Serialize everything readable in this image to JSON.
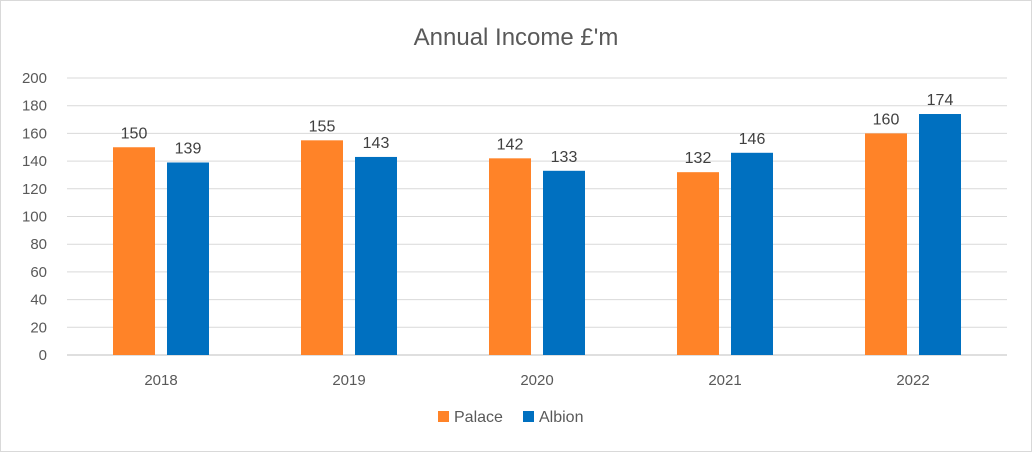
{
  "chart_data": {
    "type": "bar",
    "title": "Annual Income £'m",
    "xlabel": "",
    "ylabel": "",
    "categories": [
      "2018",
      "2019",
      "2020",
      "2021",
      "2022"
    ],
    "series": [
      {
        "name": "Palace",
        "color": "#FF8328",
        "values": [
          150,
          155,
          142,
          132,
          160
        ]
      },
      {
        "name": "Albion",
        "color": "#0070C0",
        "values": [
          139,
          143,
          133,
          146,
          174
        ]
      }
    ],
    "ylim": [
      0,
      200
    ],
    "yticks": [
      "0",
      "20",
      "40",
      "60",
      "80",
      "100",
      "120",
      "140",
      "160",
      "180",
      "200"
    ],
    "grid": true,
    "legend": "bottom",
    "data_labels": true
  }
}
